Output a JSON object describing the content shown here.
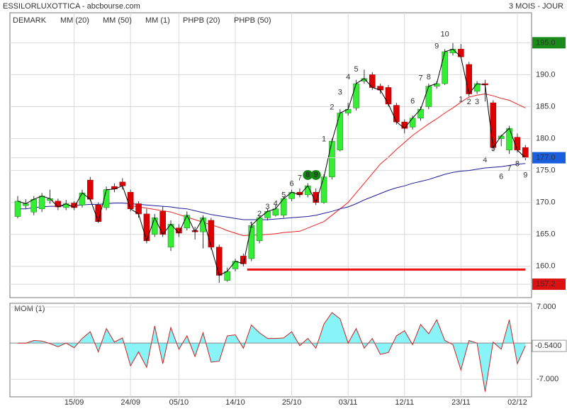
{
  "chart_data": [
    {
      "type": "candlestick",
      "title": "ESSILORLUXOTTICA - abcbourse.com",
      "subtitle": "3 MOIS - JOUR",
      "categories": [
        null,
        null,
        null,
        null,
        null,
        null,
        null,
        "15/09",
        null,
        null,
        null,
        null,
        null,
        null,
        "24/09",
        null,
        null,
        null,
        null,
        null,
        "05/10",
        null,
        null,
        null,
        null,
        null,
        null,
        "14/10",
        null,
        null,
        null,
        null,
        null,
        null,
        "25/10",
        null,
        null,
        null,
        null,
        null,
        null,
        "03/11",
        null,
        null,
        null,
        null,
        null,
        null,
        "12/11",
        null,
        null,
        null,
        null,
        null,
        null,
        "23/11",
        null,
        null,
        null,
        null,
        null,
        null,
        "02/12",
        null
      ],
      "open": [
        167.8,
        169.5,
        168.5,
        169,
        170.3,
        170.2,
        169.2,
        169.9,
        169.6,
        173.5,
        169.6,
        169.2,
        172.5,
        173.2,
        171.6,
        169.8,
        168.2,
        165,
        168.6,
        163,
        166,
        166,
        165.6,
        165.4,
        167.2,
        163,
        157.8,
        159.6,
        161.6,
        161.2,
        164,
        167.6,
        168,
        168,
        170.6,
        171.6,
        171.2,
        171.6,
        170,
        174,
        178.2,
        184,
        184.8,
        189,
        190,
        188.2,
        188,
        185.2,
        182.6,
        181.8,
        183.2,
        185,
        188.2,
        188.6,
        193.4,
        194,
        191.6,
        187.4,
        188.6,
        185.6,
        180,
        178.2,
        180.2,
        178.6
      ],
      "high": [
        171,
        170.5,
        171,
        171.5,
        172,
        170.6,
        170.4,
        170.2,
        172,
        174,
        170,
        172.5,
        173,
        173.8,
        172,
        170.2,
        169,
        168.2,
        169.4,
        167.2,
        166.6,
        168.6,
        166.2,
        168,
        167.6,
        163.4,
        159.8,
        161.2,
        162,
        167,
        168,
        169,
        169.6,
        171,
        172,
        172.2,
        173,
        172.2,
        174.4,
        180,
        184.6,
        185.6,
        189.2,
        190.8,
        190.4,
        188.6,
        188.4,
        185.6,
        183,
        183.6,
        185,
        188.6,
        189,
        194,
        195,
        194.8,
        192,
        189,
        189.2,
        186,
        180.6,
        182,
        180.8,
        179
      ],
      "low": [
        167.5,
        169,
        168,
        168.5,
        169.8,
        168.8,
        168.8,
        168.8,
        169.2,
        170.2,
        166.8,
        168.8,
        171.6,
        172,
        168.6,
        167.6,
        163.6,
        164.6,
        164.6,
        162.4,
        164.6,
        165.6,
        164.2,
        162.8,
        162.6,
        157.4,
        157.6,
        159.2,
        160,
        160.8,
        163.6,
        167.2,
        167.8,
        167.6,
        170.2,
        170.8,
        170.8,
        169.6,
        169.8,
        173.6,
        178,
        183.6,
        184.4,
        188.6,
        187.6,
        187,
        185,
        182.2,
        180.8,
        181.4,
        182.8,
        184.6,
        187.8,
        188.4,
        193,
        192.6,
        186.6,
        187,
        185.8,
        178,
        178.8,
        177.6,
        177.8,
        176.6
      ],
      "close": [
        170.2,
        169.8,
        170.5,
        171,
        170.6,
        169.3,
        169.8,
        169.2,
        171.5,
        170.5,
        167,
        172,
        172.1,
        172.6,
        169,
        168.2,
        164,
        167.6,
        165,
        166.6,
        165.2,
        168,
        165.4,
        167.6,
        163,
        158.6,
        159.2,
        160.8,
        160.4,
        166.4,
        167.6,
        168.6,
        169,
        170.6,
        171.6,
        171.2,
        172.6,
        170,
        174,
        179.6,
        184,
        184.6,
        188.6,
        189.4,
        188,
        187.6,
        185.4,
        182.6,
        181.6,
        183.2,
        184.6,
        188.2,
        188.6,
        193.6,
        194,
        192.8,
        187,
        188.6,
        188.4,
        178.6,
        180.4,
        181.6,
        178.2,
        177
      ],
      "up_color": "#33ee33",
      "down_color": "#dd0000",
      "legend": [
        {
          "name": "DEMARK",
          "color": "#119911"
        },
        {
          "name": "MM (20)",
          "color": "#dd2222"
        },
        {
          "name": "MM (50)",
          "color": "#1a1a99"
        },
        {
          "name": "MM (1)",
          "color": "#000000"
        },
        {
          "name": "PHPB (20)",
          "color": "#119911"
        },
        {
          "name": "PHPB (50)",
          "color": "#dd2222"
        }
      ],
      "series": [
        {
          "name": "MM (20)",
          "color": "#ee2222",
          "values": [
            null,
            null,
            null,
            null,
            null,
            null,
            null,
            null,
            null,
            null,
            null,
            null,
            null,
            null,
            169.5,
            169.3,
            169.1,
            168.9,
            168.7,
            168.5,
            168.1,
            167.7,
            167.3,
            166.9,
            166.5,
            166.1,
            165.6,
            165.2,
            164.8,
            164.9,
            164.9,
            165,
            165.1,
            165.3,
            165.4,
            165.5,
            166,
            166.5,
            167,
            168,
            169,
            170,
            171.5,
            173,
            174.5,
            176,
            177.1,
            178.3,
            179.4,
            180.5,
            181.4,
            182.3,
            183.1,
            184,
            184.8,
            185.7,
            186.5,
            186.8,
            187,
            186.7,
            186.3,
            186,
            185.4,
            184.8
          ]
        },
        {
          "name": "MM (50)",
          "color": "#1a1a99",
          "values": [
            169,
            169,
            169.2,
            169.3,
            169.4,
            169.4,
            169.5,
            169.5,
            169.6,
            169.7,
            169.7,
            169.8,
            169.9,
            169.9,
            169.8,
            169.7,
            169.6,
            169.5,
            169.4,
            169.3,
            169.1,
            169,
            168.7,
            168.4,
            168.1,
            167.9,
            167.7,
            167.5,
            167.3,
            167.3,
            167.3,
            167.3,
            167.4,
            167.5,
            167.6,
            167.7,
            167.8,
            168,
            168.3,
            168.6,
            169,
            169.3,
            169.8,
            170.4,
            170.9,
            171.4,
            171.9,
            172.3,
            172.6,
            173,
            173.3,
            173.6,
            174,
            174.4,
            174.7,
            174.9,
            175,
            175.2,
            175.4,
            175.5,
            175.6,
            175.8,
            176,
            176.1
          ]
        }
      ],
      "close_color": "#000000",
      "support_line": {
        "value": 159.5,
        "from": 29,
        "to": 63,
        "color": "#ee1111"
      },
      "demark": [
        {
          "index": 29,
          "value": 166.4,
          "label": "1",
          "color": "#118811"
        },
        {
          "index": 30,
          "value": 168.2,
          "label": "2",
          "color": "#118811"
        },
        {
          "index": 31,
          "value": 169.3,
          "label": "3",
          "color": "#118811"
        },
        {
          "index": 32,
          "value": 169.8,
          "label": "4",
          "color": "#118811"
        },
        {
          "index": 33,
          "value": 171.1,
          "label": "5",
          "color": "#118811"
        },
        {
          "index": 34,
          "value": 172.9,
          "label": "6",
          "color": "#118811"
        },
        {
          "index": 35,
          "value": 173.8,
          "label": "7",
          "color": "#118811"
        },
        {
          "index": 36,
          "value": 174.3,
          "label": "8",
          "color": "#118811",
          "circled": true
        },
        {
          "index": 37,
          "value": 174.3,
          "label": "9",
          "color": "#118811",
          "circled": true
        },
        {
          "index": 38,
          "value": 179.9,
          "label": "1",
          "color": "#dd1111"
        },
        {
          "index": 39,
          "value": 184.9,
          "label": "2",
          "color": "#dd1111"
        },
        {
          "index": 40,
          "value": 187.2,
          "label": "3",
          "color": "#dd1111"
        },
        {
          "index": 41,
          "value": 189.6,
          "label": "4",
          "color": "#dd1111"
        },
        {
          "index": 42,
          "value": 190.8,
          "label": "5",
          "color": "#dd1111"
        },
        {
          "index": 49,
          "value": 185.8,
          "label": "6",
          "color": "#dd1111"
        },
        {
          "index": 50,
          "value": 189.4,
          "label": "7",
          "color": "#dd1111"
        },
        {
          "index": 51,
          "value": 189.6,
          "label": "8",
          "color": "#dd1111"
        },
        {
          "index": 52,
          "value": 194.4,
          "label": "9",
          "color": "#dd1111"
        },
        {
          "index": 53,
          "value": 196.3,
          "label": "10",
          "color": "#dd1111"
        },
        {
          "index": 55,
          "value": 186.1,
          "label": "1",
          "color": "#118811"
        },
        {
          "index": 56,
          "value": 185.7,
          "label": "2",
          "color": "#118811"
        },
        {
          "index": 57,
          "value": 185.7,
          "label": "3",
          "color": "#118811"
        },
        {
          "index": 58,
          "value": 176.6,
          "label": "4",
          "color": "#118811"
        },
        {
          "index": 59,
          "value": 178.4,
          "label": "5",
          "color": "#118811"
        },
        {
          "index": 60,
          "value": 174,
          "label": "6",
          "color": "#118811"
        },
        {
          "index": 61,
          "value": 175.3,
          "label": "7",
          "color": "#118811"
        },
        {
          "index": 62,
          "value": 176,
          "label": "8",
          "color": "#118811"
        },
        {
          "index": 63,
          "value": 174.2,
          "label": "9",
          "color": "#118811"
        }
      ],
      "ylim": [
        155.1,
        199.7
      ],
      "yticks": [
        {
          "value": 160,
          "label": "160.0"
        },
        {
          "value": 165,
          "label": "165.0"
        },
        {
          "value": 170,
          "label": "170.0"
        },
        {
          "value": 175,
          "label": "175.0"
        },
        {
          "value": 180,
          "label": "180.0"
        },
        {
          "value": 185,
          "label": "185.0"
        },
        {
          "value": 190,
          "label": "190.0"
        }
      ],
      "price_labels": [
        {
          "value": 195,
          "label": "195.0",
          "color": "#1a8a1a"
        },
        {
          "value": 177,
          "label": "177.0",
          "color": "#1a5ee0"
        },
        {
          "value": 157.2,
          "label": "157.2",
          "color": "#dd1111"
        }
      ],
      "grid": true
    },
    {
      "type": "line",
      "title": "MOM (1)",
      "color": "#cc2222",
      "fill": "#88f4f8",
      "values": [
        0,
        0,
        0.5,
        0.4,
        -0.1,
        -0.7,
        0,
        -0.9,
        0.9,
        2.2,
        -1.7,
        2.8,
        0.2,
        1,
        -4.4,
        -1.7,
        -4.7,
        3.3,
        -4,
        3,
        -1.2,
        1.4,
        -2.6,
        2,
        -3.7,
        -3.5,
        1.4,
        1.6,
        -1,
        3.5,
        2,
        0.9,
        0.9,
        1,
        2.2,
        -0.5,
        0.9,
        -1,
        3.7,
        5.9,
        4.7,
        0,
        2.8,
        -1,
        0.9,
        -2.2,
        -1.8,
        1.4,
        2.4,
        -0.3,
        3.6,
        1.8,
        4.5,
        0.5,
        -0.3,
        -5.2,
        0.5,
        0,
        -9.4,
        0.2,
        -1.2,
        4.5,
        -4,
        -0.54
      ],
      "last_label": "-0.5400",
      "ylim": [
        -10.4,
        7.7
      ],
      "yticks": [
        {
          "value": 7,
          "label": "7.000"
        },
        {
          "value": -7,
          "label": "-7.000"
        }
      ],
      "grid": true
    }
  ]
}
